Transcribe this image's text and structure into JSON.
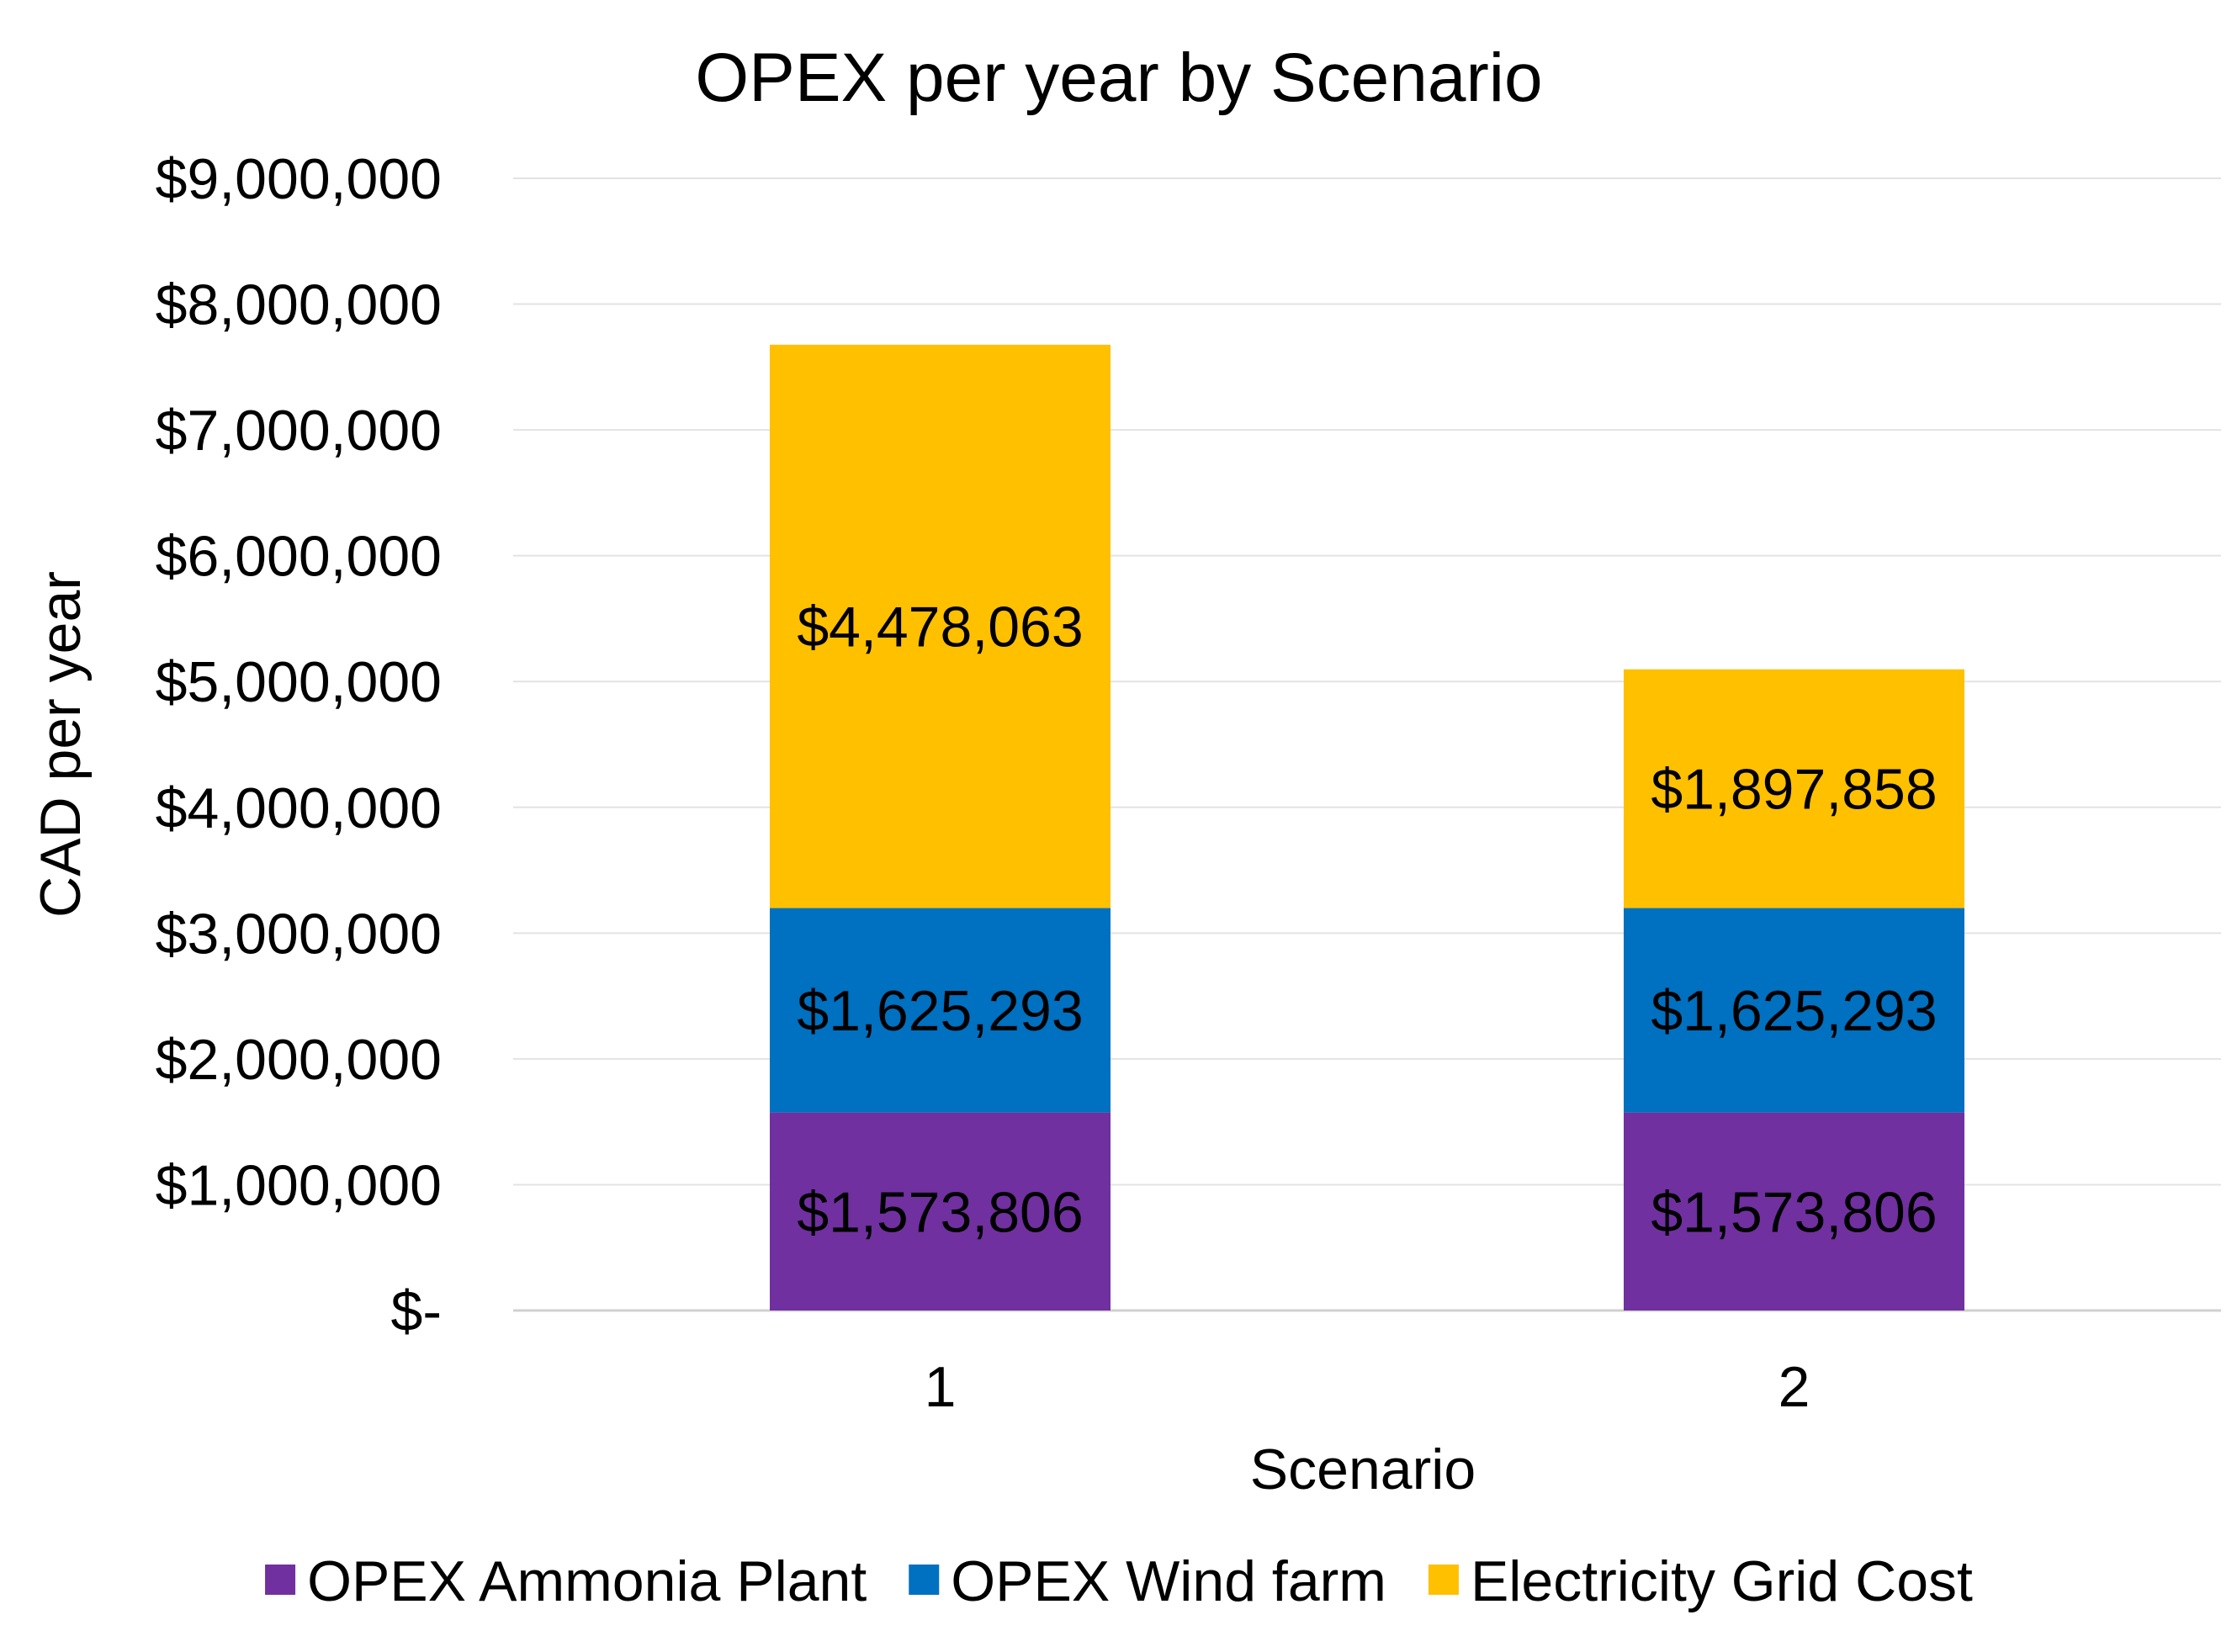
{
  "chart_data": {
    "type": "bar",
    "stacked": true,
    "title": "OPEX per year by Scenario",
    "xlabel": "Scenario",
    "ylabel": "CAD per year",
    "categories": [
      "1",
      "2"
    ],
    "ylim": [
      0,
      9000000
    ],
    "yticks": [
      0,
      1000000,
      2000000,
      3000000,
      4000000,
      5000000,
      6000000,
      7000000,
      8000000,
      9000000
    ],
    "ytick_labels": [
      "$-",
      "$1,000,000",
      "$2,000,000",
      "$3,000,000",
      "$4,000,000",
      "$5,000,000",
      "$6,000,000",
      "$7,000,000",
      "$8,000,000",
      "$9,000,000"
    ],
    "grid": true,
    "legend_position": "bottom",
    "series": [
      {
        "name": "OPEX Ammonia Plant",
        "color": "#7030A0",
        "values": [
          1573806,
          1573806
        ],
        "labels": [
          "$1,573,806",
          "$1,573,806"
        ]
      },
      {
        "name": "OPEX Wind farm",
        "color": "#0070C0",
        "values": [
          1625293,
          1625293
        ],
        "labels": [
          "$1,625,293",
          "$1,625,293"
        ]
      },
      {
        "name": "Electricity Grid Cost",
        "color": "#FFC000",
        "values": [
          4478063,
          1897858
        ],
        "labels": [
          "$4,478,063",
          "$1,897,858"
        ]
      }
    ]
  }
}
